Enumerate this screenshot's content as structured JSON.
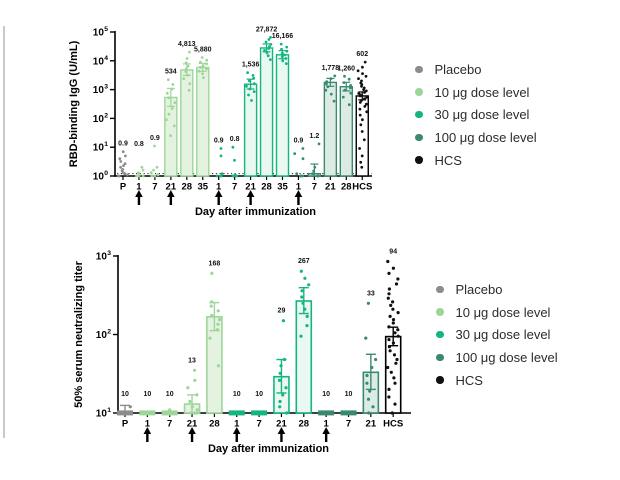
{
  "legend": {
    "entries": [
      {
        "label": "Placebo",
        "color": "#8c8c8c",
        "icon": "placebo-dot-icon"
      },
      {
        "label": "10 μg dose level",
        "color": "#9ed699",
        "icon": "dose-10ug-dot-icon"
      },
      {
        "label": "30 μg dose level",
        "color": "#14b57f",
        "icon": "dose-30ug-dot-icon"
      },
      {
        "label": "100 μg dose level",
        "color": "#3a8a70",
        "icon": "dose-100ug-dot-icon"
      },
      {
        "label": "HCS",
        "color": "#111111",
        "icon": "hcs-dot-icon"
      }
    ]
  },
  "groups": {
    "placebo": {
      "stroke": "#8c8c8c",
      "fill": "#e2e2e2",
      "dot": "#8c8c8c"
    },
    "dose10": {
      "stroke": "#9ed699",
      "fill": "#e4f3e0",
      "dot": "#9ed699"
    },
    "dose30": {
      "stroke": "#14b57f",
      "fill": "#e9f8f1",
      "dot": "#14b57f"
    },
    "dose100": {
      "stroke": "#3a8a70",
      "fill": "#dcece4",
      "dot": "#3a8a70"
    },
    "hcs": {
      "stroke": "#000000",
      "fill": "#ffffff",
      "dot": "#111111"
    }
  },
  "chart_data": [
    {
      "type": "bar",
      "title": "",
      "ylabel": "RBD-binding IgG (U/mL)",
      "xlabel": "Day after immunization",
      "yscale": "log",
      "ylim": [
        1,
        100000
      ],
      "grid": false,
      "legend_position": "right",
      "baseline_dotted": true,
      "categories": [
        "P",
        "1",
        "7",
        "21",
        "28",
        "35",
        "1",
        "7",
        "21",
        "28",
        "35",
        "1",
        "7",
        "21",
        "28",
        "HCS"
      ],
      "arrows": [
        1,
        3,
        6,
        8,
        11
      ],
      "bars": [
        {
          "cat": "P",
          "group": "placebo",
          "value": 0.9,
          "label": "0.9",
          "err": null,
          "points": [
            1,
            1,
            1.1,
            1.2,
            1.3,
            1.5,
            1.7,
            2,
            2.3,
            2.7,
            3.2,
            4,
            5,
            7
          ]
        },
        {
          "cat": "1",
          "group": "dose10",
          "value": 0.8,
          "label": "0.8",
          "err": null,
          "points": [
            1,
            1,
            1,
            1.1,
            1.3,
            1.6,
            2
          ]
        },
        {
          "cat": "7",
          "group": "dose10",
          "value": 0.9,
          "label": "0.9",
          "err": null,
          "points": [
            1,
            1,
            1.1,
            1.3,
            1.6,
            2,
            11
          ]
        },
        {
          "cat": "21",
          "group": "dose10",
          "value": 534,
          "label": "534",
          "err": [
            260,
            1100
          ],
          "points": [
            25,
            55,
            90,
            140,
            220,
            350,
            520,
            750,
            1050,
            1500,
            2200
          ]
        },
        {
          "cat": "28",
          "group": "dose10",
          "value": 4813,
          "label": "4,813",
          "err": [
            3100,
            7800
          ],
          "points": [
            950,
            1600,
            2400,
            3200,
            4200,
            5200,
            6500,
            8500,
            12000,
            20000
          ]
        },
        {
          "cat": "35",
          "group": "dose10",
          "value": 5880,
          "label": "5,880",
          "err": [
            4300,
            8100
          ],
          "points": [
            2600,
            3600,
            4400,
            5200,
            6000,
            6800,
            7800,
            9000,
            10500,
            13000
          ]
        },
        {
          "cat": "1",
          "group": "dose30",
          "value": 0.9,
          "label": "0.9",
          "err": null,
          "points": [
            1,
            1,
            1,
            1.2,
            5,
            9
          ]
        },
        {
          "cat": "7",
          "group": "dose30",
          "value": 0.8,
          "label": "0.8",
          "err": null,
          "points": [
            1,
            1,
            1,
            1.1,
            3.5,
            10
          ]
        },
        {
          "cat": "21",
          "group": "dose30",
          "value": 1536,
          "label": "1,536",
          "err": [
            1050,
            2300
          ],
          "points": [
            420,
            650,
            850,
            1050,
            1300,
            1600,
            2000,
            2500,
            3100,
            3900
          ]
        },
        {
          "cat": "28",
          "group": "dose30",
          "value": 27872,
          "label": "27,872",
          "err": [
            20500,
            38500
          ],
          "points": [
            11000,
            15000,
            19000,
            23000,
            27000,
            31000,
            37000,
            45000,
            55000,
            65000
          ]
        },
        {
          "cat": "35",
          "group": "dose30",
          "value": 16166,
          "label": "16,166",
          "err": [
            11800,
            22500
          ],
          "points": [
            8000,
            10000,
            12000,
            14000,
            16000,
            18500,
            21500,
            25000,
            30000,
            38000
          ]
        },
        {
          "cat": "1",
          "group": "dose100",
          "value": 0.9,
          "label": "0.9",
          "err": null,
          "points": [
            1,
            1,
            1,
            1.2,
            4,
            6,
            9
          ]
        },
        {
          "cat": "7",
          "group": "dose100",
          "value": 1.2,
          "label": "1.2",
          "err": [
            0.95,
            2.6
          ],
          "points": [
            1,
            1,
            1,
            1.2,
            1.5,
            2,
            13
          ]
        },
        {
          "cat": "21",
          "group": "dose100",
          "value": 1778,
          "label": "1,778",
          "err": [
            1300,
            2450
          ],
          "points": [
            400,
            700,
            950,
            1250,
            1550,
            1900,
            2400,
            3000
          ]
        },
        {
          "cat": "28",
          "group": "dose100",
          "value": 1260,
          "label": "1,260",
          "err": [
            900,
            1800
          ],
          "points": [
            300,
            550,
            750,
            950,
            1150,
            1400,
            1750,
            2300,
            2900
          ]
        },
        {
          "cat": "HCS",
          "group": "hcs",
          "value": 602,
          "label": "602",
          "err": [
            440,
            830
          ],
          "points": [
            2,
            3,
            5,
            9,
            18,
            35,
            60,
            90,
            130,
            170,
            210,
            260,
            310,
            360,
            420,
            480,
            540,
            600,
            660,
            730,
            800,
            900,
            1000,
            1150,
            1300,
            1500,
            1700,
            2000,
            2400,
            2900,
            3600,
            4500,
            6000,
            9000
          ]
        }
      ]
    },
    {
      "type": "bar",
      "title": "",
      "ylabel": "50% serum neutralizing titer",
      "xlabel": "Day after immunization",
      "yscale": "log",
      "ylim": [
        10,
        1000
      ],
      "grid": false,
      "legend_position": "right",
      "baseline_dotted": false,
      "categories": [
        "P",
        "1",
        "7",
        "21",
        "28",
        "1",
        "7",
        "21",
        "28",
        "1",
        "7",
        "21",
        "HCS"
      ],
      "arrows": [
        1,
        3,
        5,
        7,
        9
      ],
      "bars": [
        {
          "cat": "P",
          "group": "placebo",
          "value": 10,
          "label": "10",
          "err": [
            10,
            12.5
          ],
          "points": [
            10,
            10,
            10,
            10,
            10,
            10,
            10,
            10,
            10,
            12
          ]
        },
        {
          "cat": "1",
          "group": "dose10",
          "value": 10,
          "label": "10",
          "err": null,
          "points": [
            10,
            10,
            10,
            10,
            10,
            10,
            10,
            10,
            10,
            10
          ]
        },
        {
          "cat": "7",
          "group": "dose10",
          "value": 10,
          "label": "10",
          "err": null,
          "points": [
            10,
            10,
            10,
            10,
            10,
            10,
            10,
            10,
            10,
            11
          ]
        },
        {
          "cat": "21",
          "group": "dose10",
          "value": 13,
          "label": "13",
          "err": [
            10,
            17
          ],
          "points": [
            10,
            10,
            10,
            10,
            10,
            11,
            12,
            14,
            17,
            21,
            26,
            35
          ]
        },
        {
          "cat": "28",
          "group": "dose10",
          "value": 168,
          "label": "168",
          "err": [
            112,
            255
          ],
          "points": [
            40,
            90,
            115,
            135,
            155,
            175,
            200,
            230,
            260,
            600
          ]
        },
        {
          "cat": "1",
          "group": "dose30",
          "value": 10,
          "label": "10",
          "err": null,
          "points": [
            10,
            10,
            10,
            10,
            10,
            10,
            10,
            10,
            10,
            10
          ]
        },
        {
          "cat": "7",
          "group": "dose30",
          "value": 10,
          "label": "10",
          "err": null,
          "points": [
            10,
            10,
            10,
            10,
            10,
            10,
            10,
            10,
            10,
            10
          ]
        },
        {
          "cat": "21",
          "group": "dose30",
          "value": 29,
          "label": "29",
          "err": [
            18,
            48
          ],
          "points": [
            10,
            12,
            14,
            17,
            21,
            26,
            32,
            40,
            48,
            150
          ]
        },
        {
          "cat": "28",
          "group": "dose30",
          "value": 267,
          "label": "267",
          "err": [
            185,
            395
          ],
          "points": [
            95,
            130,
            170,
            210,
            250,
            300,
            360,
            430,
            520,
            640
          ]
        },
        {
          "cat": "1",
          "group": "dose100",
          "value": 10,
          "label": "10",
          "err": null,
          "points": [
            10,
            10,
            10,
            10,
            10,
            10,
            10,
            10
          ]
        },
        {
          "cat": "7",
          "group": "dose100",
          "value": 10,
          "label": "10",
          "err": null,
          "points": [
            10,
            10,
            10,
            10,
            10,
            10,
            10,
            10
          ]
        },
        {
          "cat": "21",
          "group": "dose100",
          "value": 33,
          "label": "33",
          "err": [
            20,
            56
          ],
          "points": [
            10,
            12,
            15,
            19,
            24,
            30,
            38,
            48,
            90,
            250
          ]
        },
        {
          "cat": "HCS",
          "group": "hcs",
          "value": 94,
          "label": "94",
          "err": [
            72,
            124
          ],
          "points": [
            10,
            13,
            16,
            20,
            24,
            28,
            33,
            38,
            43,
            48,
            55,
            62,
            70,
            78,
            86,
            95,
            105,
            115,
            125,
            140,
            155,
            170,
            190,
            210,
            235,
            260,
            290,
            330,
            380,
            440,
            510,
            600,
            700,
            850
          ]
        }
      ]
    }
  ]
}
